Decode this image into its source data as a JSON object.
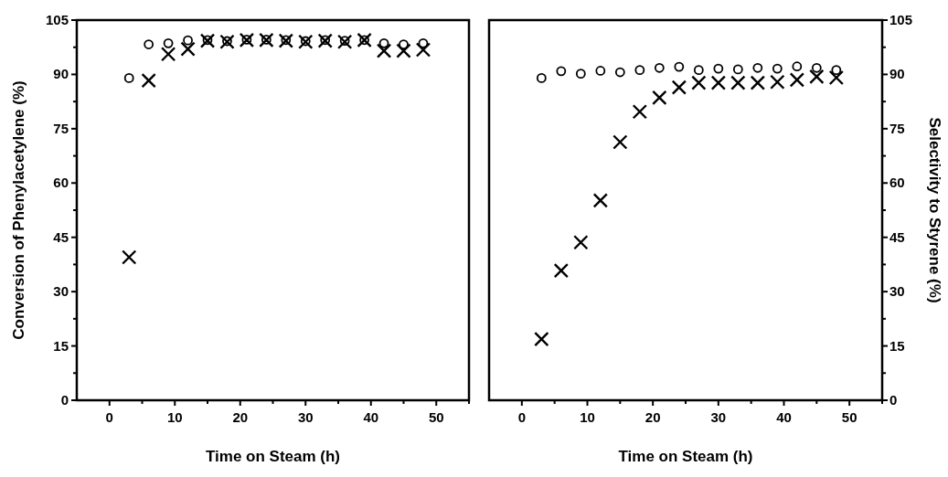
{
  "chart_data": [
    {
      "type": "scatter",
      "xlabel": "Time on Steam (h)",
      "ylabel": "Conversion of Phenylacetylene (%)",
      "xlim": [
        -5,
        55
      ],
      "xticks": [
        0,
        {
          "value": 5,
          "label": null
        },
        10,
        {
          "value": 15,
          "label": null
        },
        20,
        {
          "value": 25,
          "label": null
        },
        30,
        {
          "value": 35,
          "label": null
        },
        40,
        {
          "value": 45,
          "label": null
        },
        50,
        {
          "value": 55,
          "label": null
        }
      ],
      "ylim": [
        0,
        105
      ],
      "yticks": [
        0,
        {
          "value": 7.5,
          "label": null
        },
        15,
        {
          "value": 22.5,
          "label": null
        },
        30,
        {
          "value": 37.5,
          "label": null
        },
        45,
        {
          "value": 52.5,
          "label": null
        },
        60,
        {
          "value": 67.5,
          "label": null
        },
        75,
        {
          "value": 82.5,
          "label": null
        },
        90,
        {
          "value": 97.5,
          "label": null
        },
        105
      ],
      "x": [
        3,
        6,
        9,
        12,
        15,
        18,
        21,
        24,
        27,
        30,
        33,
        36,
        39,
        42,
        45,
        48
      ],
      "series": [
        {
          "color": "#000000",
          "marker": "circle",
          "values": [
            89,
            98.3,
            98.6,
            99.4,
            99.5,
            99.2,
            99.6,
            99.6,
            99.5,
            99.2,
            99.5,
            99.3,
            99.5,
            98.6,
            98.3,
            98.6
          ]
        },
        {
          "color": "#000000",
          "marker": "cross",
          "values": [
            39.5,
            88.3,
            95.6,
            97,
            99.3,
            99,
            99.5,
            99.5,
            99.3,
            99,
            99.3,
            99,
            99.5,
            96.5,
            96.5,
            96.8
          ]
        }
      ]
    },
    {
      "type": "scatter",
      "xlabel": "Time on Steam (h)",
      "y2label": "Selectivity to Styrene (%)",
      "xlim": [
        -5,
        55
      ],
      "xticks": [
        0,
        {
          "value": 5,
          "label": null
        },
        10,
        {
          "value": 15,
          "label": null
        },
        20,
        {
          "value": 25,
          "label": null
        },
        30,
        {
          "value": 35,
          "label": null
        },
        40,
        {
          "value": 45,
          "label": null
        },
        50,
        {
          "value": 55,
          "label": null
        }
      ],
      "y2lim": [
        0,
        105
      ],
      "y2ticks": [
        0,
        {
          "value": 7.5,
          "label": null
        },
        15,
        {
          "value": 22.5,
          "label": null
        },
        30,
        {
          "value": 37.5,
          "label": null
        },
        45,
        {
          "value": 52.5,
          "label": null
        },
        60,
        {
          "value": 67.5,
          "label": null
        },
        75,
        {
          "value": 82.5,
          "label": null
        },
        90,
        {
          "value": 97.5,
          "label": null
        },
        105
      ],
      "x": [
        3,
        6,
        9,
        12,
        15,
        18,
        21,
        24,
        27,
        30,
        33,
        36,
        39,
        42,
        45,
        48
      ],
      "series": [
        {
          "color": "#000000",
          "marker": "circle",
          "axis": "y2",
          "values": [
            89,
            90.9,
            90.2,
            91,
            90.6,
            91.2,
            91.8,
            92.1,
            91.2,
            91.6,
            91.4,
            91.8,
            91.6,
            92.2,
            91.8,
            91.2
          ]
        },
        {
          "color": "#000000",
          "marker": "cross",
          "axis": "y2",
          "values": [
            16.9,
            35.8,
            43.6,
            55.2,
            71.3,
            79.7,
            83.6,
            86.4,
            87.7,
            87.7,
            87.7,
            87.7,
            87.9,
            88.5,
            89.4,
            89.1
          ]
        }
      ]
    }
  ]
}
